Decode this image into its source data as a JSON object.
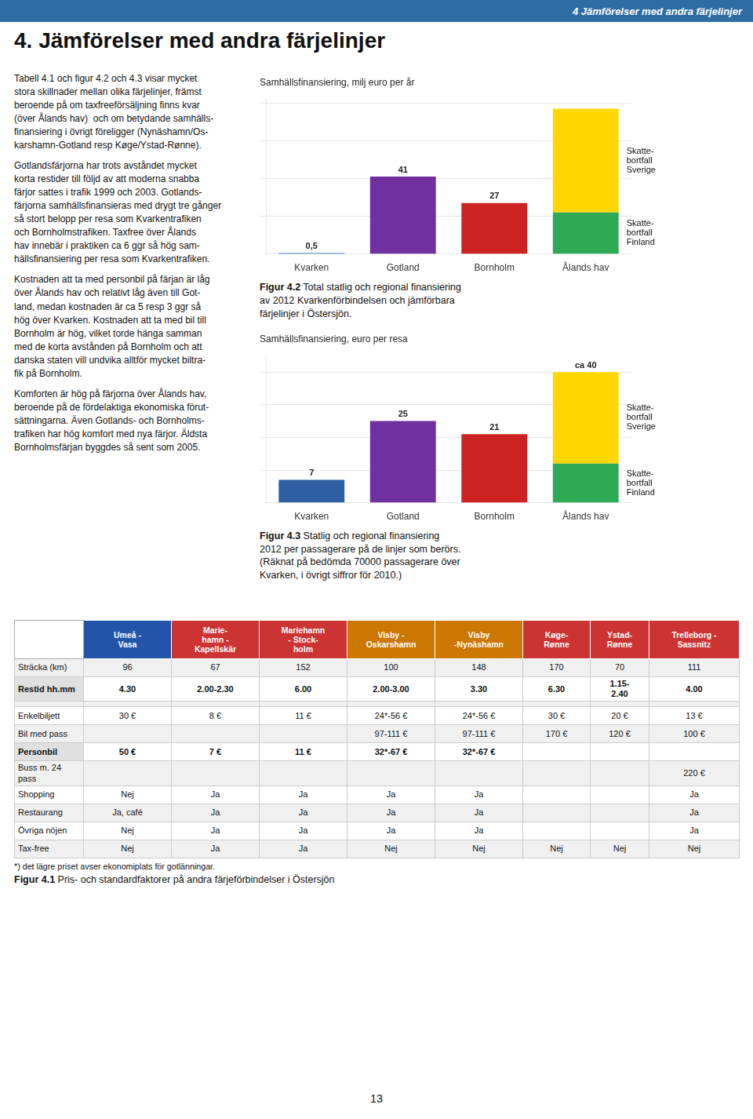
{
  "header": {
    "text": "4 Jämförelser med andra färjelinjer",
    "background": "#2E6DA4",
    "color": "#ffffff"
  },
  "title": "4. Jämförelser med andra färjelinjer",
  "paragraphs": [
    "Tabell 4.1 och figur 4.2 och 4.3 visar mycket\nstora skillnader mellan olika färjelinjer, främst\nberoende på om taxfreeförsäljning finns kvar\n(över Ålands hav)  och om betydande samhälls-\nfinansiering i övrigt föreligger (Nynäshamn/Os-\nkarshamn-Gotland resp Køge/Ystad-Rønne).",
    "Gotlandsfärjorna har trots avståndet mycket\nkorta restider till följd av att moderna snabba\nfärjor sattes i trafik 1999 och 2003. Gotlands-\nfärjorna samhällsfinansieras med drygt tre gånger\nså stort belopp per resa som Kvarkentrafiken\noch Bornholmstrafiken. Taxfree över Ålands\nhav innebär i praktiken ca 6 ggr så hög sam-\nhällsfinansiering per resa som Kvarkentrafiken.",
    "Kostnaden att ta med personbil på färjan är låg\növer Ålands hav och relativt låg även till Got-\nland, medan kostnaden är ca 5 resp 3 ggr så\nhög över Kvarken. Kostnaden att ta med bil till\nBornholm är hög, vilket torde hänga samman\nmed de korta avstånden på Bornholm och att\ndanska staten vill undvika alltför mycket biltra-\nfik på Bornholm.",
    "Komforten är hög på färjorna över Ålands hav,\nberoende på de fördelaktiga ekonomiska förut-\nsättningarna. Även Gotlands- och Bornholms-\ntrafiken har hög komfort med nya färjor. Äldsta\nBornholmsfärjan byggdes så sent som 2005."
  ],
  "chart_data": [
    {
      "type": "bar",
      "title": "Samhällsfinansiering, milj euro per år",
      "categories": [
        "Kvarken",
        "Gotland",
        "Bornholm",
        "Ålands hav"
      ],
      "stacked": true,
      "series": [
        {
          "values": [
            0.5,
            41,
            27,
            null
          ],
          "colors": [
            "#2E5FA3",
            "#7030A0",
            "#CC2222",
            "#2EAA55"
          ],
          "value_labels": [
            "0,5",
            "41",
            "27",
            null
          ]
        },
        {
          "name": "Skatte-\nbortfall\nFinland",
          "color": "#2EAA55",
          "values": [
            null,
            null,
            null,
            22
          ]
        },
        {
          "name": "Skatte-\nbortfall\nSverige",
          "color": "#FFD700",
          "values": [
            null,
            null,
            null,
            55
          ]
        }
      ],
      "ylim": [
        0,
        82
      ],
      "yticks": [
        20,
        40,
        60,
        80
      ],
      "grid": true,
      "legend": "right",
      "tick_labels": "x",
      "caption": {
        "label": "Figur 4.2",
        "text": " Total statlig och regional finansiering\nav 2012 Kvarkenförbindelsen och jämförbara\nfärjelinjer i Östersjön."
      }
    },
    {
      "type": "bar",
      "title": "Samhällsfinansiering, euro per resa",
      "categories": [
        "Kvarken",
        "Gotland",
        "Bornholm",
        "Ålands hav"
      ],
      "stacked": true,
      "series": [
        {
          "values": [
            7,
            25,
            21,
            null
          ],
          "colors": [
            "#2E5FA3",
            "#7030A0",
            "#CC2222",
            "#2EAA55"
          ],
          "value_labels": [
            "7",
            "25",
            "21",
            null
          ]
        },
        {
          "name": "Skatte-\nbortfall\nFinland",
          "color": "#2EAA55",
          "values": [
            null,
            null,
            null,
            12
          ]
        },
        {
          "name": "Skatte-\nbortfall\nSverige",
          "color": "#FFD700",
          "values": [
            null,
            null,
            null,
            28
          ]
        }
      ],
      "annotations": [
        {
          "text": "ca 40",
          "x": "Ålands hav"
        }
      ],
      "ylim": [
        0,
        45
      ],
      "yticks": [
        10,
        20,
        30,
        40
      ],
      "grid": true,
      "legend": "right",
      "tick_labels": "x",
      "caption": {
        "label": "Figur 4.3",
        "text": " Statlig och regional finansiering\n2012 per passagerare på de linjer som berörs.\n(Räknat på bedömda 70000 passagerare över\nKvarken, i övrigt siffror för 2010.)"
      }
    }
  ],
  "table": {
    "headers": [
      "Umeå -\nVasa",
      "Marie-\nhamn -\nKapellskär",
      "Mariehamn\n- Stock-\nholm",
      "Visby -\nOskarshamn",
      "Visby\n-Nynäshamn",
      "Køge-\nRønne",
      "Ystad-\nRønne",
      "Trelleborg -\nSassnitz"
    ],
    "header_colors": [
      "#2255AA",
      "#CC3333",
      "#CC3333",
      "#CC7700",
      "#CC7700",
      "#CC3333",
      "#CC3333",
      "#CC3333"
    ],
    "header_text_color": "#ffffff",
    "rows": [
      {
        "label": "Sträcka (km)",
        "bold": false,
        "cells": [
          "96",
          "67",
          "152",
          "100",
          "148",
          "170",
          "70",
          "111"
        ]
      },
      {
        "label": "Restid hh.mm",
        "bold": true,
        "cells": [
          "4.30",
          "2.00-2.30",
          "6.00",
          "2.00-3.00",
          "3.30",
          "6.30",
          "1.15-\n2.40",
          "4.00"
        ]
      },
      {
        "label": null,
        "bold": false,
        "cells": [
          null,
          null,
          null,
          null,
          null,
          null,
          null,
          null
        ]
      },
      {
        "label": "Enkelbiljett",
        "bold": false,
        "cells": [
          "30 €",
          "8 €",
          "11 €",
          "24*-56 €",
          "24*-56 €",
          "30 €",
          "20 €",
          "13 €"
        ]
      },
      {
        "label": "Bil med pass",
        "bold": false,
        "cells": [
          null,
          null,
          null,
          "97-111 €",
          "97-111 €",
          "170 €",
          "120 €",
          "100 €"
        ]
      },
      {
        "label": "Personbil",
        "bold": true,
        "cells": [
          "50 €",
          "7 €",
          "11 €",
          "32*-67 €",
          "32*-67 €",
          null,
          null,
          null
        ]
      },
      {
        "label": "Buss m. 24\npass",
        "bold": false,
        "cells": [
          null,
          null,
          null,
          null,
          null,
          null,
          null,
          "220 €"
        ]
      },
      {
        "label": "Shopping",
        "bold": false,
        "cells": [
          "Nej",
          "Ja",
          "Ja",
          "Ja",
          "Ja",
          null,
          null,
          "Ja"
        ]
      },
      {
        "label": "Restaurang",
        "bold": false,
        "cells": [
          "Ja, café",
          "Ja",
          "Ja",
          "Ja",
          "Ja",
          null,
          null,
          "Ja"
        ]
      },
      {
        "label": "Övriga nöjen",
        "bold": false,
        "cells": [
          "Nej",
          "Ja",
          "Ja",
          "Ja",
          "Ja",
          null,
          null,
          "Ja"
        ]
      },
      {
        "label": "Tax-free",
        "bold": false,
        "cells": [
          "Nej",
          "Ja",
          "Ja",
          "Nej",
          "Nej",
          "Nej",
          "Nej",
          "Nej"
        ]
      }
    ],
    "note": "*) det lägre priset avser ekonomiplats för gotlänningar.",
    "caption": {
      "label": "Figur 4.1",
      "text": " Pris- och standardfaktorer på andra färjeförbindelser i Östersjön"
    }
  },
  "page_number": "13"
}
